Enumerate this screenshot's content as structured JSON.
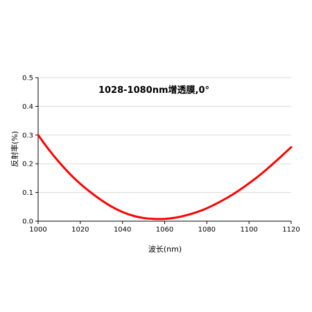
{
  "chart_data": {
    "type": "line",
    "title": "1028-1080nm增透膜,0°",
    "xlabel": "波长(nm)",
    "ylabel": "反射率(%)",
    "xlim": [
      1000,
      1120
    ],
    "ylim": [
      0,
      0.5
    ],
    "x_ticks": [
      "1000",
      "1020",
      "1040",
      "1060",
      "1080",
      "1100",
      "1120"
    ],
    "y_ticks": [
      "0.0",
      "0.1",
      "0.2",
      "0.3",
      "0.4",
      "0.5"
    ],
    "grid": "horizontal",
    "legend": "none",
    "series": [
      {
        "color": "#ff0000",
        "x": [
          1000,
          1005,
          1010,
          1015,
          1020,
          1025,
          1030,
          1035,
          1040,
          1045,
          1050,
          1055,
          1060,
          1065,
          1070,
          1075,
          1080,
          1085,
          1090,
          1095,
          1100,
          1105,
          1110,
          1115,
          1120
        ],
        "y": [
          0.3,
          0.25,
          0.205,
          0.165,
          0.13,
          0.1,
          0.073,
          0.05,
          0.032,
          0.019,
          0.011,
          0.008,
          0.008,
          0.012,
          0.02,
          0.031,
          0.045,
          0.063,
          0.083,
          0.106,
          0.132,
          0.16,
          0.191,
          0.224,
          0.258
        ]
      }
    ]
  },
  "colors": {
    "line": "#ff0000",
    "grid": "#d9d9d9",
    "axis": "#000000",
    "background": "#ffffff"
  }
}
